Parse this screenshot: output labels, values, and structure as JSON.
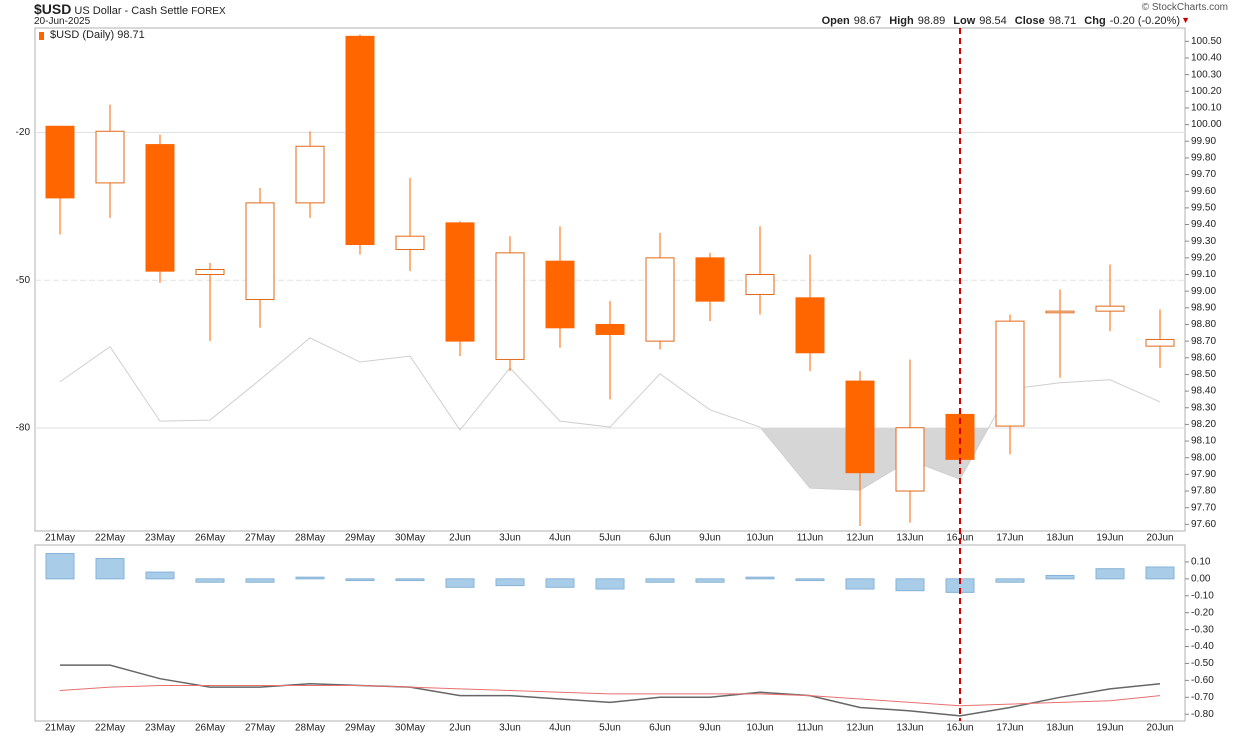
{
  "chart_data": [
    {
      "type": "candlestick",
      "title": "$USD",
      "subtitle": "US Dollar - Cash Settle",
      "exchange": "FOREX",
      "date": "20-Jun-2025",
      "source": "© StockCharts.com",
      "quote": {
        "labels": [
          "Open",
          "High",
          "Low",
          "Close",
          "Chg"
        ],
        "values": [
          "98.67",
          "98.89",
          "98.54",
          "98.71",
          "-0.20 (-0.20%)"
        ]
      },
      "legend": "$USD (Daily) 98.71",
      "categories": [
        "21May",
        "22May",
        "23May",
        "26May",
        "27May",
        "28May",
        "29May",
        "30May",
        "2Jun",
        "3Jun",
        "4Jun",
        "5Jun",
        "6Jun",
        "9Jun",
        "10Jun",
        "11Jun",
        "12Jun",
        "13Jun",
        "16Jun",
        "17Jun",
        "18Jun",
        "19Jun",
        "20Jun"
      ],
      "open": [
        99.99,
        99.65,
        99.88,
        99.1,
        98.95,
        99.53,
        100.53,
        99.25,
        99.41,
        98.59,
        99.18,
        98.8,
        98.7,
        99.2,
        98.98,
        98.96,
        98.46,
        97.8,
        98.26,
        98.19,
        98.87,
        98.88,
        98.67
      ],
      "high": [
        99.99,
        100.12,
        99.94,
        99.17,
        99.62,
        99.96,
        100.54,
        99.68,
        99.42,
        99.33,
        99.39,
        98.94,
        99.35,
        99.23,
        99.39,
        99.22,
        98.52,
        98.59,
        98.26,
        98.86,
        99.01,
        99.16,
        98.89
      ],
      "low": [
        99.34,
        99.44,
        99.05,
        98.7,
        98.78,
        99.44,
        99.22,
        99.12,
        98.61,
        98.52,
        98.66,
        98.35,
        98.65,
        98.82,
        98.86,
        98.52,
        97.59,
        97.61,
        97.99,
        98.02,
        98.48,
        98.76,
        98.54
      ],
      "close": [
        99.56,
        99.96,
        99.12,
        99.13,
        99.53,
        99.87,
        99.28,
        99.33,
        98.7,
        99.23,
        98.78,
        98.74,
        99.2,
        98.94,
        99.1,
        98.63,
        97.91,
        98.18,
        97.99,
        98.82,
        98.88,
        98.91,
        98.71
      ],
      "color": "#ff6600",
      "ylim": [
        97.56,
        100.58
      ],
      "yticks": [
        {
          "value": 97.6,
          "label": "97.60"
        },
        {
          "value": 97.7,
          "label": "97.70"
        },
        {
          "value": 97.8,
          "label": "97.80"
        },
        {
          "value": 97.9,
          "label": "97.90"
        },
        {
          "value": 98.0,
          "label": "98.00"
        },
        {
          "value": 98.1,
          "label": "98.10"
        },
        {
          "value": 98.2,
          "label": "98.20"
        },
        {
          "value": 98.3,
          "label": "98.30"
        },
        {
          "value": 98.4,
          "label": "98.40"
        },
        {
          "value": 98.5,
          "label": "98.50"
        },
        {
          "value": 98.6,
          "label": "98.60"
        },
        {
          "value": 98.7,
          "label": "98.70"
        },
        {
          "value": 98.8,
          "label": "98.80"
        },
        {
          "value": 98.9,
          "label": "98.90"
        },
        {
          "value": 99.0,
          "label": "99.00"
        },
        {
          "value": 99.1,
          "label": "99.10"
        },
        {
          "value": 99.2,
          "label": "99.20"
        },
        {
          "value": 99.3,
          "label": "99.30"
        },
        {
          "value": 99.4,
          "label": "99.40"
        },
        {
          "value": 99.5,
          "label": "99.50"
        },
        {
          "value": 99.6,
          "label": "99.60"
        },
        {
          "value": 99.7,
          "label": "99.70"
        },
        {
          "value": 99.8,
          "label": "99.80"
        },
        {
          "value": 99.9,
          "label": "99.90"
        },
        {
          "value": 100.0,
          "label": "100.00"
        },
        {
          "value": 100.1,
          "label": "100.10"
        },
        {
          "value": 100.2,
          "label": "100.20"
        },
        {
          "value": 100.3,
          "label": "100.30"
        },
        {
          "value": 100.4,
          "label": "100.40"
        },
        {
          "value": 100.5,
          "label": "100.50"
        }
      ],
      "y2lim": [
        -100.9,
        1.2
      ],
      "y2ticks": [
        -20,
        -50,
        -80
      ],
      "series": [
        {
          "color": "#cfcfcf",
          "axis": "y2",
          "shade": true,
          "values": [
            -70.6,
            -63.5,
            -78.6,
            -78.4,
            -70.2,
            -61.7,
            -66.6,
            -65.4,
            -80.4,
            -67.8,
            -78.6,
            -79.8,
            -69.0,
            -76.3,
            -79.8,
            -92.2,
            -92.6,
            -86.5,
            -90.4,
            -72.1,
            -70.8,
            -70.2,
            -74.7
          ]
        }
      ],
      "grid": true,
      "highlight": "16Jun"
    },
    {
      "type": "bar",
      "categories": [
        "21May",
        "22May",
        "23May",
        "26May",
        "27May",
        "28May",
        "29May",
        "30May",
        "2Jun",
        "3Jun",
        "4Jun",
        "5Jun",
        "6Jun",
        "9Jun",
        "10Jun",
        "11Jun",
        "12Jun",
        "13Jun",
        "16Jun",
        "17Jun",
        "18Jun",
        "19Jun",
        "20Jun"
      ],
      "values": [
        0.15,
        0.12,
        0.04,
        -0.02,
        -0.02,
        0.01,
        -0.01,
        -0.01,
        -0.05,
        -0.04,
        -0.05,
        -0.06,
        -0.02,
        -0.02,
        0.01,
        -0.01,
        -0.06,
        -0.07,
        -0.08,
        -0.02,
        0.02,
        0.06,
        0.07
      ],
      "color": "#a9cde8",
      "series": [
        {
          "color": "#666666",
          "values": [
            -0.51,
            -0.51,
            -0.59,
            -0.64,
            -0.64,
            -0.62,
            -0.63,
            -0.64,
            -0.69,
            -0.69,
            -0.71,
            -0.73,
            -0.7,
            -0.7,
            -0.67,
            -0.69,
            -0.76,
            -0.78,
            -0.81,
            -0.76,
            -0.7,
            -0.65,
            -0.62
          ]
        },
        {
          "color": "#e87070",
          "values": [
            -0.66,
            -0.64,
            -0.63,
            -0.63,
            -0.63,
            -0.63,
            -0.63,
            -0.64,
            -0.65,
            -0.66,
            -0.67,
            -0.68,
            -0.68,
            -0.68,
            -0.68,
            -0.69,
            -0.71,
            -0.73,
            -0.75,
            -0.74,
            -0.73,
            -0.72,
            -0.69
          ]
        }
      ],
      "ylim": [
        -0.84,
        0.2
      ],
      "yticks": [
        {
          "value": 0.1,
          "label": "0.10"
        },
        {
          "value": 0,
          "label": "0.00"
        },
        {
          "value": -0.1,
          "label": "-0.10"
        },
        {
          "value": -0.2,
          "label": "-0.20"
        },
        {
          "value": -0.3,
          "label": "-0.30"
        },
        {
          "value": -0.4,
          "label": "-0.40"
        },
        {
          "value": -0.5,
          "label": "-0.50"
        },
        {
          "value": -0.6,
          "label": "-0.60"
        },
        {
          "value": -0.7,
          "label": "-0.70"
        },
        {
          "value": -0.8,
          "label": "-0.80"
        }
      ]
    }
  ]
}
